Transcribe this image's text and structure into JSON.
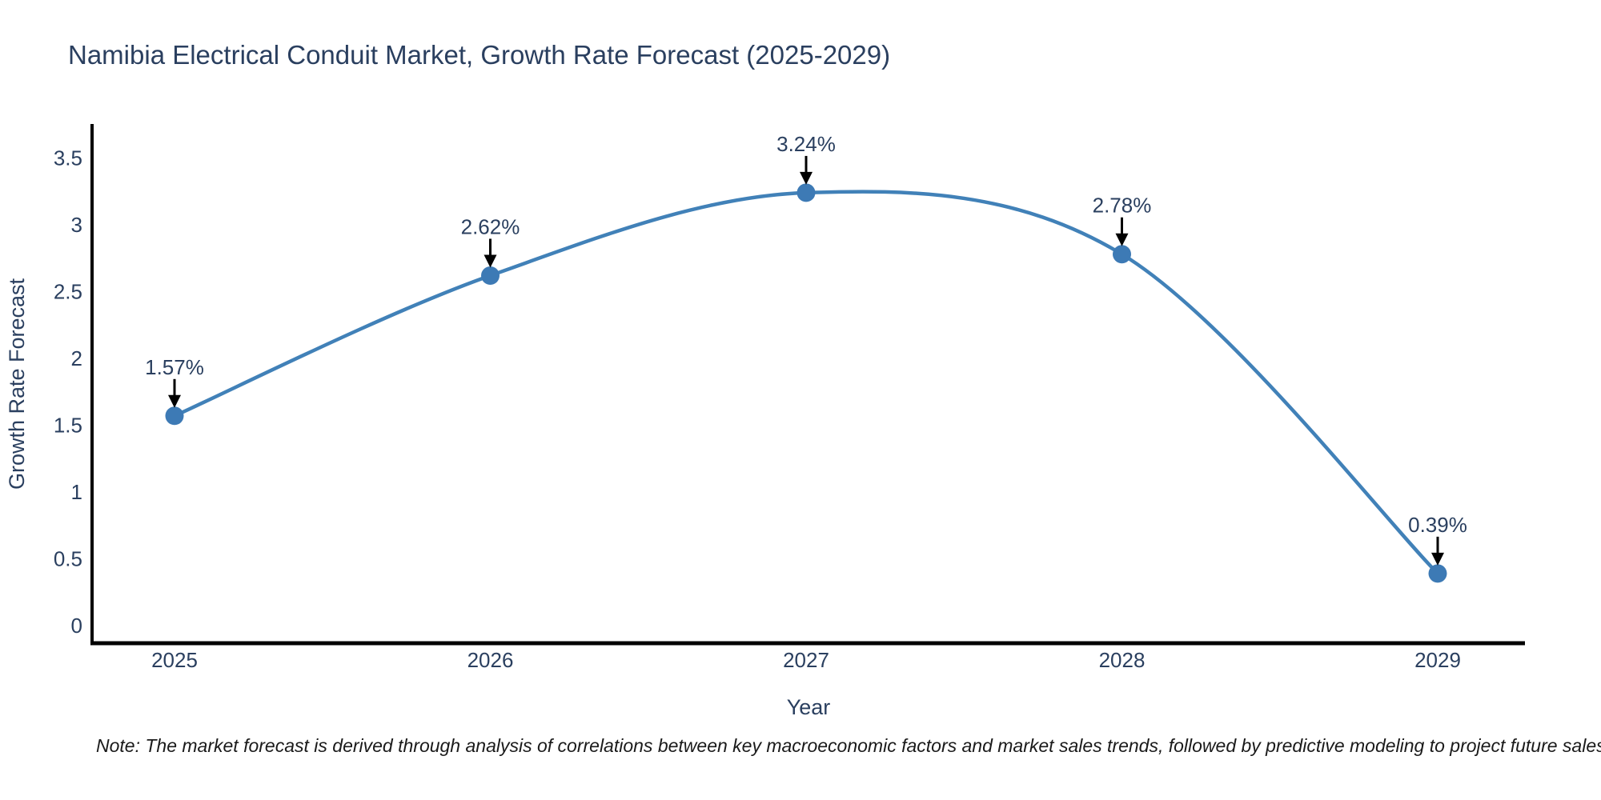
{
  "chart_data": {
    "type": "line",
    "title": "Namibia Electrical Conduit Market, Growth Rate Forecast (2025-2029)",
    "xlabel": "Year",
    "ylabel": "Growth Rate Forecast",
    "categories": [
      "2025",
      "2026",
      "2027",
      "2028",
      "2029"
    ],
    "values": [
      1.57,
      2.62,
      3.24,
      2.78,
      0.39
    ],
    "point_labels": [
      "1.57%",
      "2.62%",
      "3.24%",
      "2.78%",
      "0.39%"
    ],
    "yticks": [
      0,
      0.5,
      1,
      1.5,
      2,
      2.5,
      3,
      3.5
    ],
    "ylim": [
      -0.13,
      3.74
    ],
    "line_shape": "spline",
    "grid": false,
    "legend": "none",
    "colors": {
      "line": "#4181b8",
      "marker": "#3d7ab5",
      "axis": "#000000",
      "text": "#2a3f5f",
      "annotation_arrow": "#000000",
      "note_text": "#1a1a1a",
      "background": "#ffffff"
    }
  },
  "note": "Note: The market forecast is derived through analysis of correlations between key macroeconomic factors and market sales trends, followed by predictive modeling to project future sales"
}
